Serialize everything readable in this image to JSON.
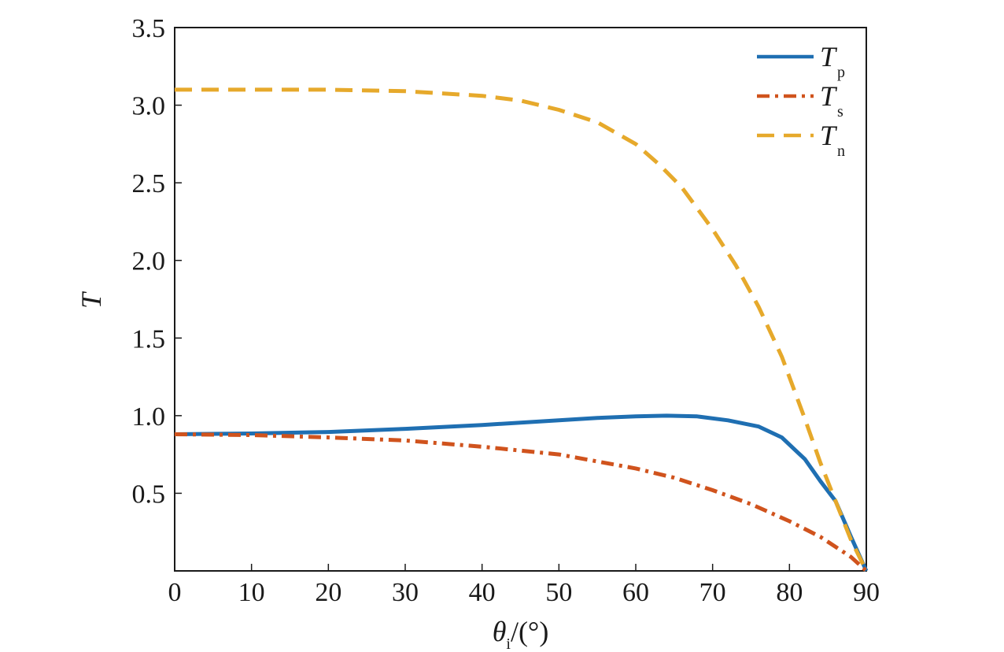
{
  "chart_data": {
    "type": "line",
    "xlabel": {
      "symbol": "θ",
      "subscript": "i",
      "unit": "/(°)"
    },
    "ylabel": "T",
    "xlim": [
      0,
      90
    ],
    "ylim": [
      0,
      3.5
    ],
    "x_ticks": [
      0,
      10,
      20,
      30,
      40,
      50,
      60,
      70,
      80,
      90
    ],
    "x_tick_labels": [
      "0",
      "10",
      "20",
      "30",
      "40",
      "50",
      "60",
      "70",
      "80",
      "90"
    ],
    "y_ticks": [
      0.5,
      1.0,
      1.5,
      2.0,
      2.5,
      3.0,
      3.5
    ],
    "y_tick_labels": [
      "0.5",
      "1.0",
      "1.5",
      "2.0",
      "2.5",
      "3.0",
      "3.5"
    ],
    "grid": false,
    "legend_position": "top-right",
    "series": [
      {
        "name": "T",
        "subscript": "p",
        "color": "#1f6fb2",
        "dash": "solid",
        "x": [
          0,
          10,
          20,
          30,
          40,
          50,
          55,
          60,
          64,
          68,
          72,
          76,
          79,
          82,
          84,
          86,
          88,
          90
        ],
        "y": [
          0.88,
          0.885,
          0.895,
          0.915,
          0.94,
          0.97,
          0.985,
          0.995,
          1.0,
          0.995,
          0.97,
          0.93,
          0.86,
          0.72,
          0.58,
          0.45,
          0.22,
          0.0
        ]
      },
      {
        "name": "T",
        "subscript": "s",
        "color": "#d0531d",
        "dash": "dashdot",
        "x": [
          0,
          10,
          20,
          30,
          40,
          50,
          60,
          65,
          70,
          75,
          80,
          84,
          88,
          90
        ],
        "y": [
          0.88,
          0.875,
          0.86,
          0.84,
          0.8,
          0.75,
          0.66,
          0.6,
          0.52,
          0.43,
          0.32,
          0.22,
          0.09,
          0.0
        ]
      },
      {
        "name": "T",
        "subscript": "n",
        "color": "#e6a92b",
        "dash": "dashed",
        "x": [
          0,
          10,
          20,
          30,
          40,
          45,
          50,
          55,
          60,
          63,
          66,
          70,
          73,
          76,
          79,
          82,
          84,
          86,
          88,
          90
        ],
        "y": [
          3.1,
          3.1,
          3.1,
          3.09,
          3.06,
          3.03,
          2.97,
          2.89,
          2.75,
          2.62,
          2.47,
          2.2,
          1.97,
          1.7,
          1.38,
          0.98,
          0.7,
          0.45,
          0.2,
          0.0
        ]
      }
    ]
  }
}
